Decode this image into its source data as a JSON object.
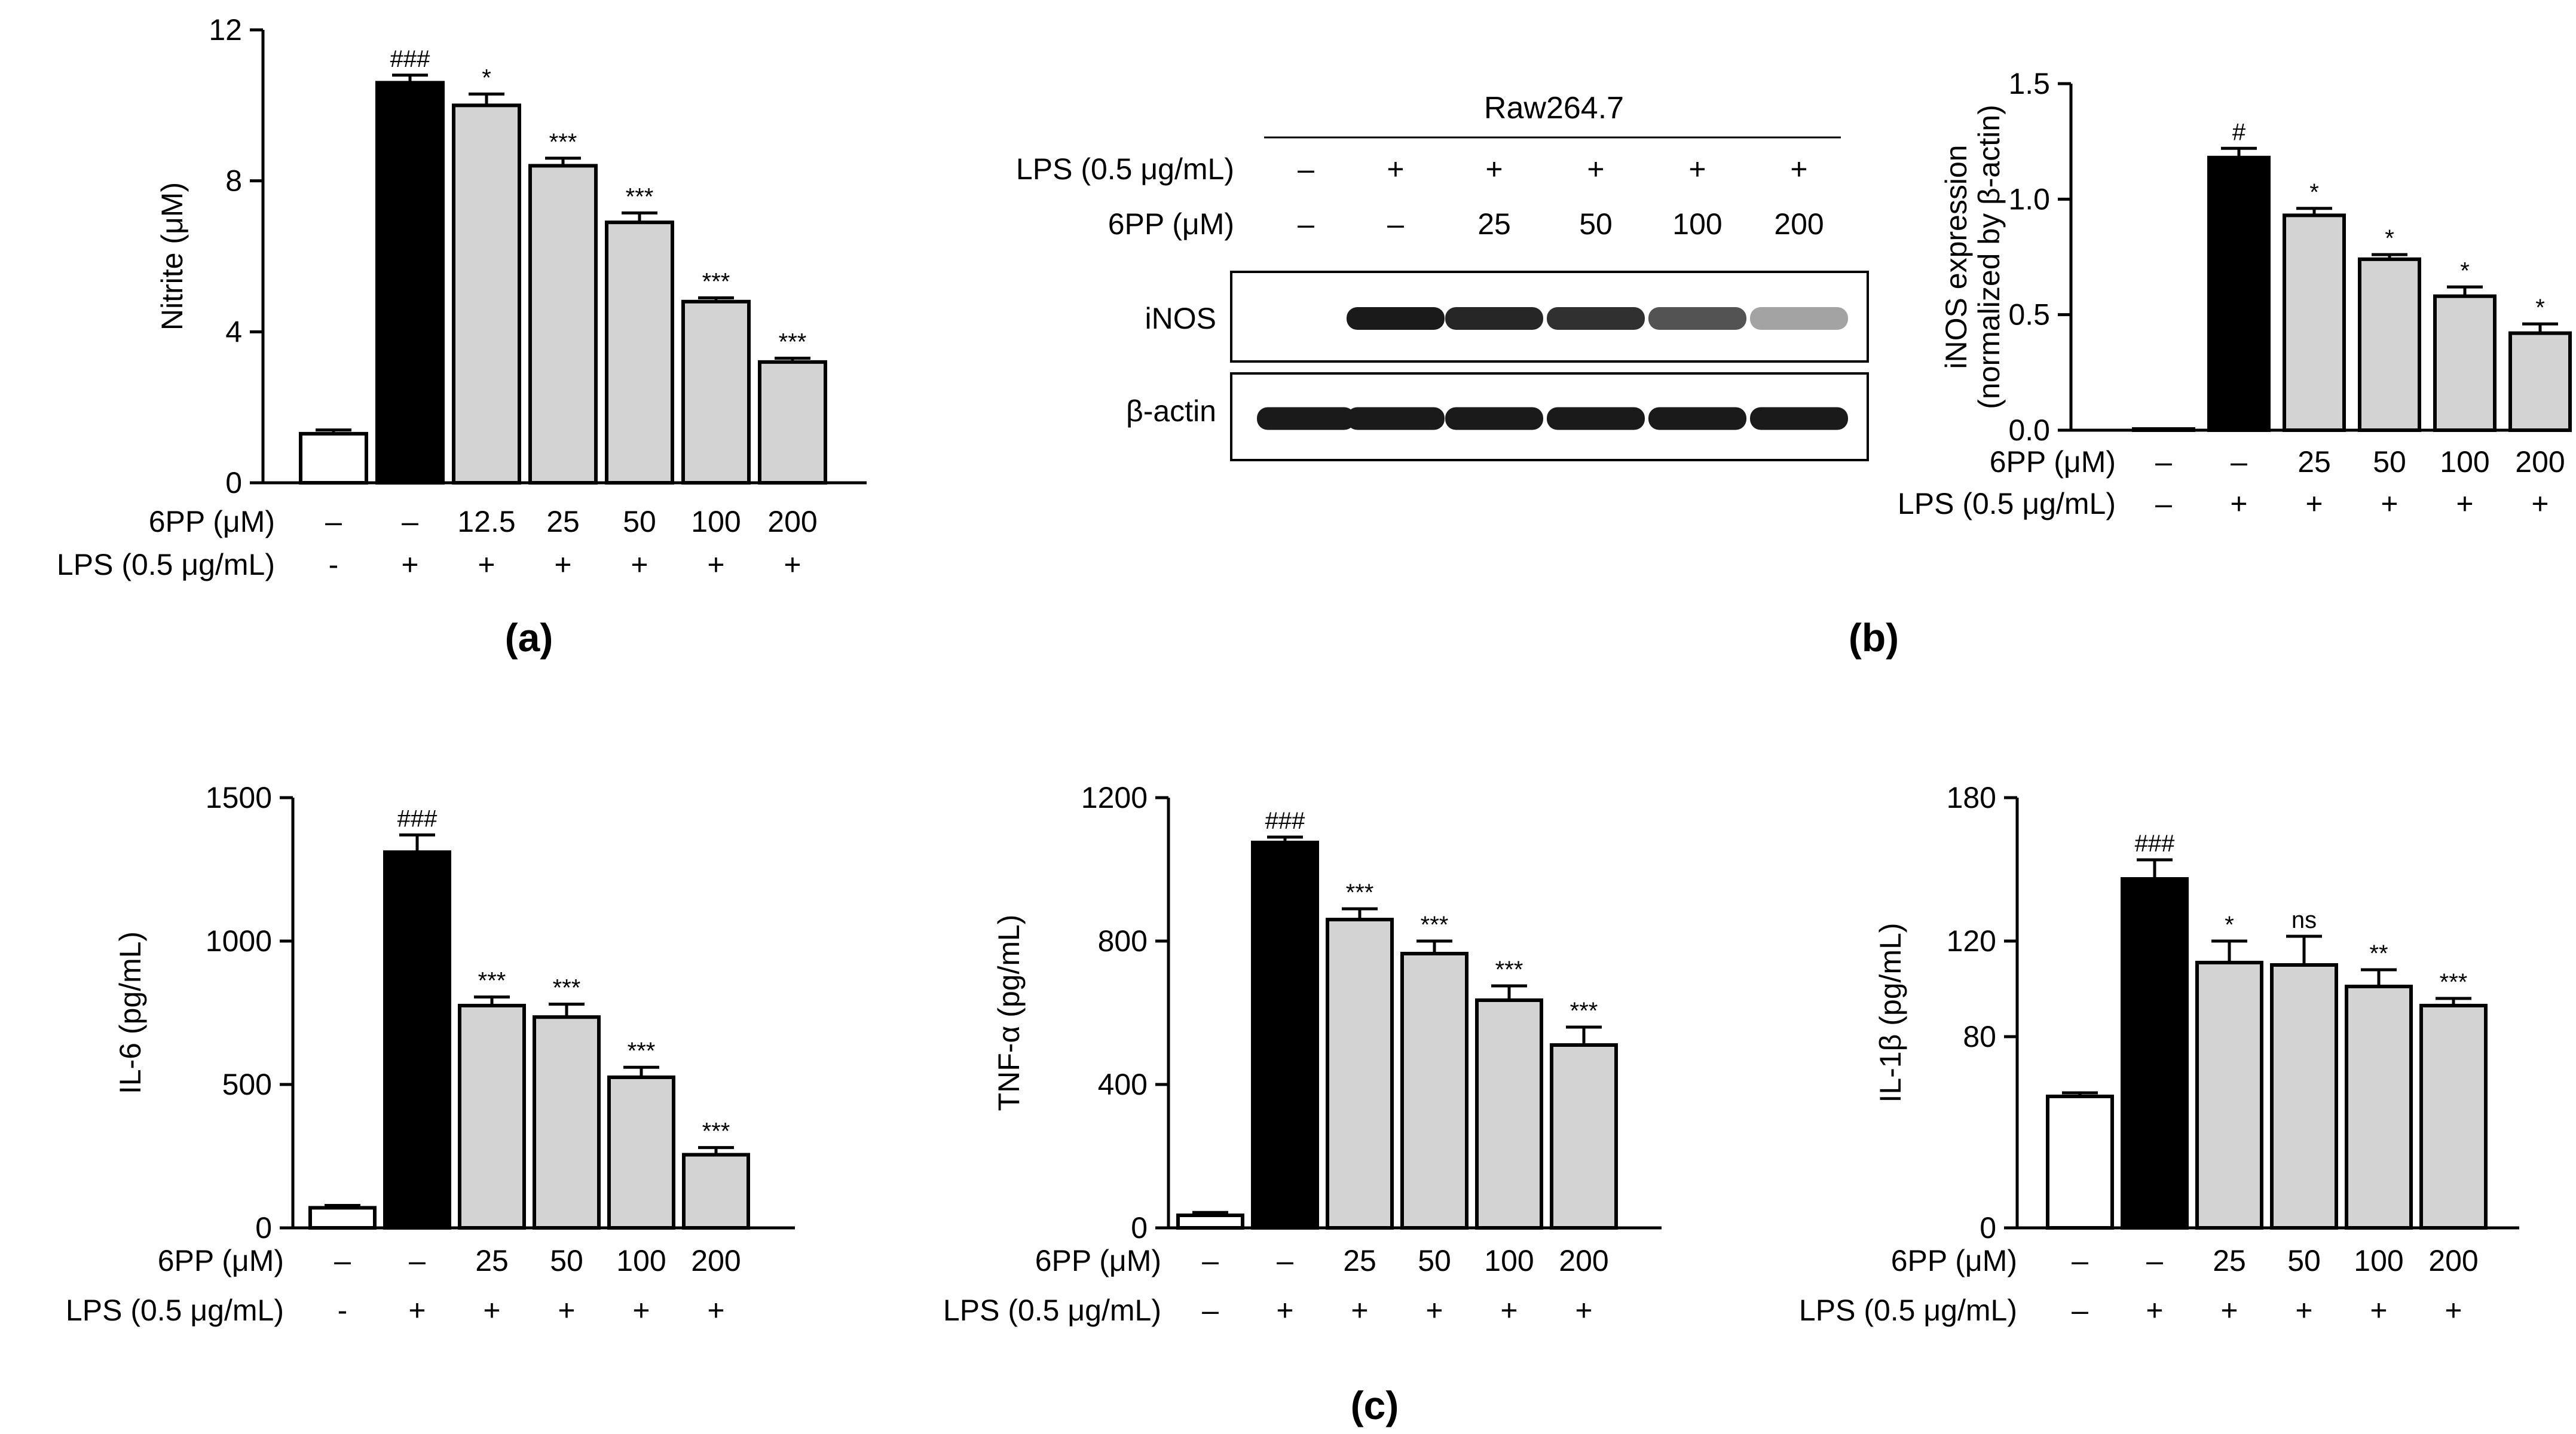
{
  "colors": {
    "control": "#ffffff",
    "lps": "#000000",
    "treated": "#d3d3d3",
    "axis": "#000000",
    "blot_band": "#1a1a1a"
  },
  "chart_data": [
    {
      "id": "a",
      "panel_label": "(a)",
      "type": "bar",
      "ylabel": "Nitrite (μM)",
      "ylim": [
        0,
        12
      ],
      "yticks": [
        "0",
        "4",
        "8",
        "12"
      ],
      "ytick_values": [
        0,
        4,
        8,
        12
      ],
      "values": [
        1.3,
        10.6,
        10.0,
        8.4,
        6.9,
        4.8,
        3.2
      ],
      "errors": [
        0.1,
        0.2,
        0.3,
        0.2,
        0.25,
        0.1,
        0.1
      ],
      "fills": [
        "control",
        "lps",
        "treated",
        "treated",
        "treated",
        "treated",
        "treated"
      ],
      "significance": [
        "",
        "###",
        "*",
        "***",
        "***",
        "***",
        "***"
      ],
      "rows": [
        {
          "label": "6PP (μM)",
          "cells": [
            "–",
            "–",
            "12.5",
            "25",
            "50",
            "100",
            "200"
          ]
        },
        {
          "label": "LPS (0.5 μg/mL)",
          "cells": [
            "-",
            "+",
            "+",
            "+",
            "+",
            "+",
            "+"
          ]
        }
      ]
    },
    {
      "id": "b_chart",
      "panel_label": "(b)",
      "type": "bar",
      "ylabel_line1": "iNOS expression",
      "ylabel_line2": "(normalized by β-actin)",
      "ylim": [
        0,
        1.5
      ],
      "yticks": [
        "0.0",
        "0.5",
        "1.0",
        "1.5"
      ],
      "ytick_values": [
        0,
        0.5,
        1.0,
        1.5
      ],
      "values": [
        0.0,
        1.18,
        0.93,
        0.74,
        0.58,
        0.42
      ],
      "errors": [
        0,
        0.04,
        0.03,
        0.02,
        0.04,
        0.04
      ],
      "fills": [
        "control",
        "lps",
        "treated",
        "treated",
        "treated",
        "treated"
      ],
      "significance": [
        "",
        "#",
        "*",
        "*",
        "*",
        "*"
      ],
      "rows": [
        {
          "label": "6PP (μM)",
          "cells": [
            "–",
            "–",
            "25",
            "50",
            "100",
            "200"
          ]
        },
        {
          "label": "LPS (0.5 μg/mL)",
          "cells": [
            "–",
            "+",
            "+",
            "+",
            "+",
            "+"
          ]
        }
      ]
    },
    {
      "id": "c1",
      "type": "bar",
      "ylabel": "IL-6 (pg/mL)",
      "ylim": [
        0,
        1500
      ],
      "yticks": [
        "0",
        "500",
        "1000",
        "1500"
      ],
      "ytick_values": [
        0,
        500,
        1000,
        1500
      ],
      "values": [
        70,
        1310,
        775,
        735,
        525,
        255
      ],
      "errors": [
        8,
        60,
        30,
        45,
        35,
        25
      ],
      "fills": [
        "control",
        "lps",
        "treated",
        "treated",
        "treated",
        "treated"
      ],
      "significance": [
        "",
        "###",
        "***",
        "***",
        "***",
        "***"
      ],
      "rows": [
        {
          "label": "6PP (μM)",
          "cells": [
            "–",
            "–",
            "25",
            "50",
            "100",
            "200"
          ]
        },
        {
          "label": "LPS (0.5 μg/mL)",
          "cells": [
            "-",
            "+",
            "+",
            "+",
            "+",
            "+"
          ]
        }
      ]
    },
    {
      "id": "c2",
      "type": "bar",
      "ylabel": "TNF-α (pg/mL)",
      "ylim": [
        0,
        1200
      ],
      "yticks": [
        "0",
        "400",
        "800",
        "1200"
      ],
      "ytick_values": [
        0,
        400,
        800,
        1200
      ],
      "values": [
        35,
        1075,
        860,
        765,
        635,
        510
      ],
      "errors": [
        8,
        15,
        30,
        35,
        40,
        50
      ],
      "fills": [
        "control",
        "lps",
        "treated",
        "treated",
        "treated",
        "treated"
      ],
      "significance": [
        "",
        "###",
        "***",
        "***",
        "***",
        "***"
      ],
      "rows": [
        {
          "label": "6PP (μM)",
          "cells": [
            "–",
            "–",
            "25",
            "50",
            "100",
            "200"
          ]
        },
        {
          "label": "LPS (0.5 μg/mL)",
          "cells": [
            "–",
            "+",
            "+",
            "+",
            "+",
            "+"
          ]
        }
      ]
    },
    {
      "id": "c3",
      "type": "bar",
      "ylabel": "IL-1β (pg/mL)",
      "ylim": [
        0,
        180
      ],
      "yticks": [
        "0",
        "80",
        "120",
        "180"
      ],
      "ytick_values": [
        0,
        80,
        120,
        180
      ],
      "values": [
        55,
        146,
        111,
        110,
        101,
        93
      ],
      "errors": [
        1.5,
        8,
        9,
        12,
        7,
        3
      ],
      "fills": [
        "control",
        "lps",
        "treated",
        "treated",
        "treated",
        "treated"
      ],
      "significance": [
        "",
        "###",
        "*",
        "ns",
        "**",
        "***"
      ],
      "rows": [
        {
          "label": "6PP (μM)",
          "cells": [
            "–",
            "–",
            "25",
            "50",
            "100",
            "200"
          ]
        },
        {
          "label": "LPS (0.5 μg/mL)",
          "cells": [
            "–",
            "+",
            "+",
            "+",
            "+",
            "+"
          ]
        }
      ]
    }
  ],
  "blot": {
    "title": "Raw264.7",
    "rows": [
      {
        "label": "LPS (0.5 μg/mL)",
        "cells": [
          "–",
          "+",
          "+",
          "+",
          "+",
          "+"
        ]
      },
      {
        "label": "6PP (μM)",
        "cells": [
          "–",
          "–",
          "25",
          "50",
          "100",
          "200"
        ]
      }
    ],
    "bands": [
      {
        "label": "iNOS",
        "intensities": [
          0.0,
          1.0,
          0.95,
          0.9,
          0.75,
          0.4
        ]
      },
      {
        "label": "β-actin",
        "intensities": [
          1.0,
          1.0,
          1.0,
          1.0,
          1.0,
          1.0
        ]
      }
    ]
  },
  "panel_c_label": "(c)"
}
